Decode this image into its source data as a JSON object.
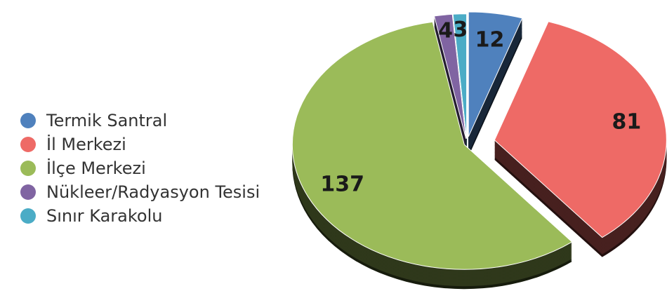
{
  "chart_data": {
    "type": "pie",
    "categories": [
      "Termik Santral",
      "İl Merkezi",
      "İlçe Merkezi",
      "Nükleer/Radyasyon Tesisi",
      "Sınır Karakolu"
    ],
    "values": [
      12,
      81,
      137,
      4,
      3
    ],
    "colors": [
      "#4f81bd",
      "#ee6a66",
      "#9bbb59",
      "#8064a2",
      "#4bacc6"
    ],
    "legend": "left"
  }
}
